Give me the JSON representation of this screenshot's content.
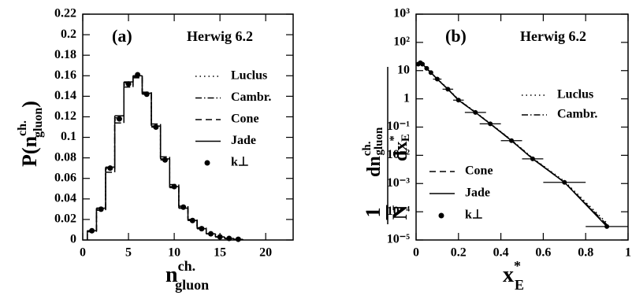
{
  "chart_data": [
    {
      "type": "step",
      "annotations": [
        "(a)",
        "Herwig 6.2"
      ],
      "xlabel": {
        "main": "n",
        "sup": "ch.",
        "sub": "gluon"
      },
      "ylabel": {
        "main": "P(n",
        "sup": "ch.",
        "sub": "gluon",
        "close": ")"
      },
      "x": [
        1,
        2,
        3,
        4,
        5,
        6,
        7,
        8,
        9,
        10,
        11,
        12,
        13,
        14,
        15,
        16,
        17
      ],
      "xlim": [
        0,
        23
      ],
      "xticks": [
        0,
        5,
        10,
        15,
        20
      ],
      "ylim": [
        0,
        0.22
      ],
      "yticks": [
        0,
        0.02,
        0.04,
        0.06,
        0.08,
        0.1,
        0.12,
        0.14,
        0.16,
        0.18,
        0.2,
        0.22
      ],
      "legend": "right",
      "series": [
        {
          "name": "Luclus",
          "style": "dotted",
          "color": "#000000",
          "values": [
            0.009,
            0.03,
            0.069,
            0.117,
            0.151,
            0.16,
            0.143,
            0.111,
            0.079,
            0.052,
            0.032,
            0.019,
            0.011,
            0.006,
            0.003,
            0.0015,
            0.0007
          ]
        },
        {
          "name": "Cambr.",
          "style": "dashdot",
          "color": "#000000",
          "values": [
            0.009,
            0.031,
            0.07,
            0.119,
            0.153,
            0.159,
            0.142,
            0.11,
            0.078,
            0.051,
            0.031,
            0.019,
            0.011,
            0.006,
            0.003,
            0.0015,
            0.0006
          ]
        },
        {
          "name": "Cone",
          "style": "dashed",
          "color": "#000000",
          "values": [
            0.008,
            0.029,
            0.066,
            0.114,
            0.149,
            0.158,
            0.144,
            0.113,
            0.081,
            0.054,
            0.033,
            0.02,
            0.012,
            0.006,
            0.003,
            0.0016,
            0.0007
          ]
        },
        {
          "name": "Jade",
          "style": "solid",
          "color": "#000000",
          "values": [
            0.009,
            0.031,
            0.071,
            0.121,
            0.154,
            0.16,
            0.143,
            0.111,
            0.079,
            0.052,
            0.031,
            0.019,
            0.011,
            0.006,
            0.003,
            0.0015,
            0.0006
          ]
        },
        {
          "name": "k⊥",
          "style": "dot",
          "color": "#000000",
          "values": [
            0.009,
            0.03,
            0.07,
            0.118,
            0.152,
            0.161,
            0.142,
            0.11,
            0.078,
            0.052,
            0.032,
            0.019,
            0.011,
            0.006,
            0.003,
            0.0015,
            0.0007
          ]
        }
      ]
    },
    {
      "type": "line",
      "annotations": [
        "(b)",
        "Herwig 6.2"
      ],
      "xlabel": {
        "main": "x",
        "sup": "*",
        "sub": "E"
      },
      "ylabel": {
        "prefix": "1",
        "norm": "N",
        "numerator": "dn",
        "sup": "ch.",
        "sub": "gluon",
        "denominator": "dx",
        "den_sup": "*",
        "den_sub": "E"
      },
      "log_y": true,
      "x": [
        0.01,
        0.02,
        0.03,
        0.05,
        0.07,
        0.1,
        0.15,
        0.2,
        0.28,
        0.35,
        0.45,
        0.55,
        0.7,
        0.9
      ],
      "xlim": [
        0,
        1
      ],
      "xticks": [
        0,
        0.2,
        0.4,
        0.6,
        0.8,
        1
      ],
      "ylim": [
        1e-05,
        1000
      ],
      "yticks": [
        {
          "value": 1000,
          "label": "10³"
        },
        {
          "value": 100,
          "label": "10²"
        },
        10,
        1,
        {
          "value": 0.1,
          "label": "10⁻¹"
        },
        {
          "value": 0.01,
          "label": "10⁻²"
        },
        {
          "value": 0.001,
          "label": "10⁻³"
        },
        {
          "value": 0.0001,
          "label": "10⁻⁴"
        },
        {
          "value": 1e-05,
          "label": "10⁻⁵"
        }
      ],
      "legend": "split",
      "xerr": [
        0.01,
        0.01,
        0.01,
        0.01,
        0.01,
        0.02,
        0.025,
        0.025,
        0.05,
        0.05,
        0.05,
        0.05,
        0.1,
        0.1
      ],
      "series": [
        {
          "name": "Luclus",
          "style": "dotted",
          "color": "#000000",
          "values": [
            16,
            19,
            17,
            12,
            8.6,
            5.1,
            2.3,
            0.95,
            0.34,
            0.135,
            0.035,
            0.008,
            0.0012,
            4e-05
          ]
        },
        {
          "name": "Cambr.",
          "style": "dashdot",
          "color": "#000000",
          "values": [
            16,
            19,
            17,
            12,
            8.5,
            5.0,
            2.2,
            0.92,
            0.33,
            0.13,
            0.034,
            0.0078,
            0.0011,
            3.5e-05
          ]
        },
        {
          "name": "Cone",
          "style": "dashed",
          "color": "#000000",
          "values": [
            15,
            18,
            16.5,
            11.8,
            8.4,
            5.0,
            2.2,
            0.9,
            0.33,
            0.13,
            0.033,
            0.0076,
            0.0011,
            3.2e-05
          ]
        },
        {
          "name": "Jade",
          "style": "solid",
          "color": "#000000",
          "values": [
            16,
            19,
            17,
            12,
            8.5,
            5.0,
            2.2,
            0.9,
            0.33,
            0.13,
            0.033,
            0.0075,
            0.0011,
            3e-05
          ]
        },
        {
          "name": "k⊥",
          "style": "dot",
          "color": "#000000",
          "values": [
            17,
            19,
            17,
            12,
            8.5,
            5.0,
            2.2,
            0.9,
            0.33,
            0.13,
            0.033,
            0.0075,
            0.0011,
            3e-05
          ]
        }
      ]
    }
  ]
}
